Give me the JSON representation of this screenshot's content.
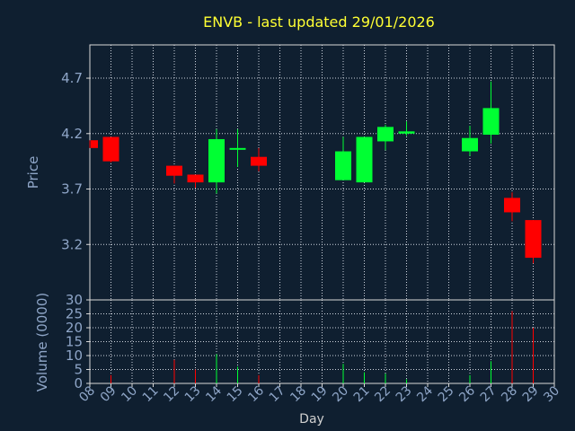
{
  "chart_data": [
    {
      "type": "candlestick",
      "title": "ENVB - last updated 29/01/2026",
      "ylabel": "Price",
      "ylim": [
        2.7,
        5.0
      ],
      "yticks": [
        "3.2",
        "3.7",
        "4.2",
        "4.7"
      ],
      "grid": true,
      "colors": {
        "up": "#00ff33",
        "down": "#ff0000",
        "background": "#0f1f30",
        "grid": "#ffffff",
        "axis_text": "#8fa6c8",
        "title": "#ffff33"
      },
      "candles": [
        {
          "day": 8.0,
          "open": 4.14,
          "high": 4.14,
          "low": 4.07,
          "close": 4.07
        },
        {
          "day": 9.0,
          "open": 4.17,
          "high": 4.17,
          "low": 3.94,
          "close": 3.95
        },
        {
          "day": 12.0,
          "open": 3.91,
          "high": 3.91,
          "low": 3.75,
          "close": 3.82
        },
        {
          "day": 13.0,
          "open": 3.83,
          "high": 3.83,
          "low": 3.71,
          "close": 3.76
        },
        {
          "day": 14.0,
          "open": 3.76,
          "high": 4.24,
          "low": 3.66,
          "close": 4.15
        },
        {
          "day": 15.0,
          "open": 4.06,
          "high": 4.24,
          "low": 3.9,
          "close": 4.07
        },
        {
          "day": 16.0,
          "open": 3.99,
          "high": 4.07,
          "low": 3.86,
          "close": 3.91
        },
        {
          "day": 20.0,
          "open": 3.78,
          "high": 4.17,
          "low": 3.78,
          "close": 4.04
        },
        {
          "day": 21.0,
          "open": 3.76,
          "high": 4.17,
          "low": 3.76,
          "close": 4.17
        },
        {
          "day": 22.0,
          "open": 4.13,
          "high": 4.28,
          "low": 4.05,
          "close": 4.26
        },
        {
          "day": 23.0,
          "open": 4.2,
          "high": 4.31,
          "low": 4.18,
          "close": 4.22
        },
        {
          "day": 26.0,
          "open": 4.04,
          "high": 4.27,
          "low": 4.0,
          "close": 4.16
        },
        {
          "day": 27.0,
          "open": 4.19,
          "high": 4.67,
          "low": 4.11,
          "close": 4.43
        },
        {
          "day": 28.0,
          "open": 3.62,
          "high": 3.67,
          "low": 3.41,
          "close": 3.49
        },
        {
          "day": 29.0,
          "open": 3.42,
          "high": 3.42,
          "low": 3.03,
          "close": 3.08
        }
      ]
    },
    {
      "type": "bar",
      "ylabel": "Volume (0000)",
      "xlabel": "Day",
      "ylim": [
        0,
        30
      ],
      "yticks": [
        "0",
        "5",
        "10",
        "15",
        "20",
        "25",
        "30"
      ],
      "xticks": [
        "08",
        "09",
        "10",
        "11",
        "12",
        "13",
        "14",
        "15",
        "16",
        "17",
        "18",
        "19",
        "20",
        "21",
        "22",
        "23",
        "24",
        "25",
        "26",
        "27",
        "28",
        "29",
        "30"
      ],
      "grid": true,
      "bars": [
        {
          "day": 9.0,
          "value": 3,
          "direction": "down"
        },
        {
          "day": 12.0,
          "value": 8.5,
          "direction": "down"
        },
        {
          "day": 13.0,
          "value": 5,
          "direction": "down"
        },
        {
          "day": 14.0,
          "value": 10.5,
          "direction": "up"
        },
        {
          "day": 15.0,
          "value": 6,
          "direction": "up"
        },
        {
          "day": 16.0,
          "value": 3,
          "direction": "down"
        },
        {
          "day": 20.0,
          "value": 7,
          "direction": "up"
        },
        {
          "day": 21.0,
          "value": 4,
          "direction": "up"
        },
        {
          "day": 22.0,
          "value": 3.5,
          "direction": "up"
        },
        {
          "day": 23.0,
          "value": 1.5,
          "direction": "up"
        },
        {
          "day": 26.0,
          "value": 3,
          "direction": "up"
        },
        {
          "day": 27.0,
          "value": 8,
          "direction": "up"
        },
        {
          "day": 28.0,
          "value": 26,
          "direction": "down"
        },
        {
          "day": 29.0,
          "value": 20,
          "direction": "down"
        }
      ]
    }
  ]
}
